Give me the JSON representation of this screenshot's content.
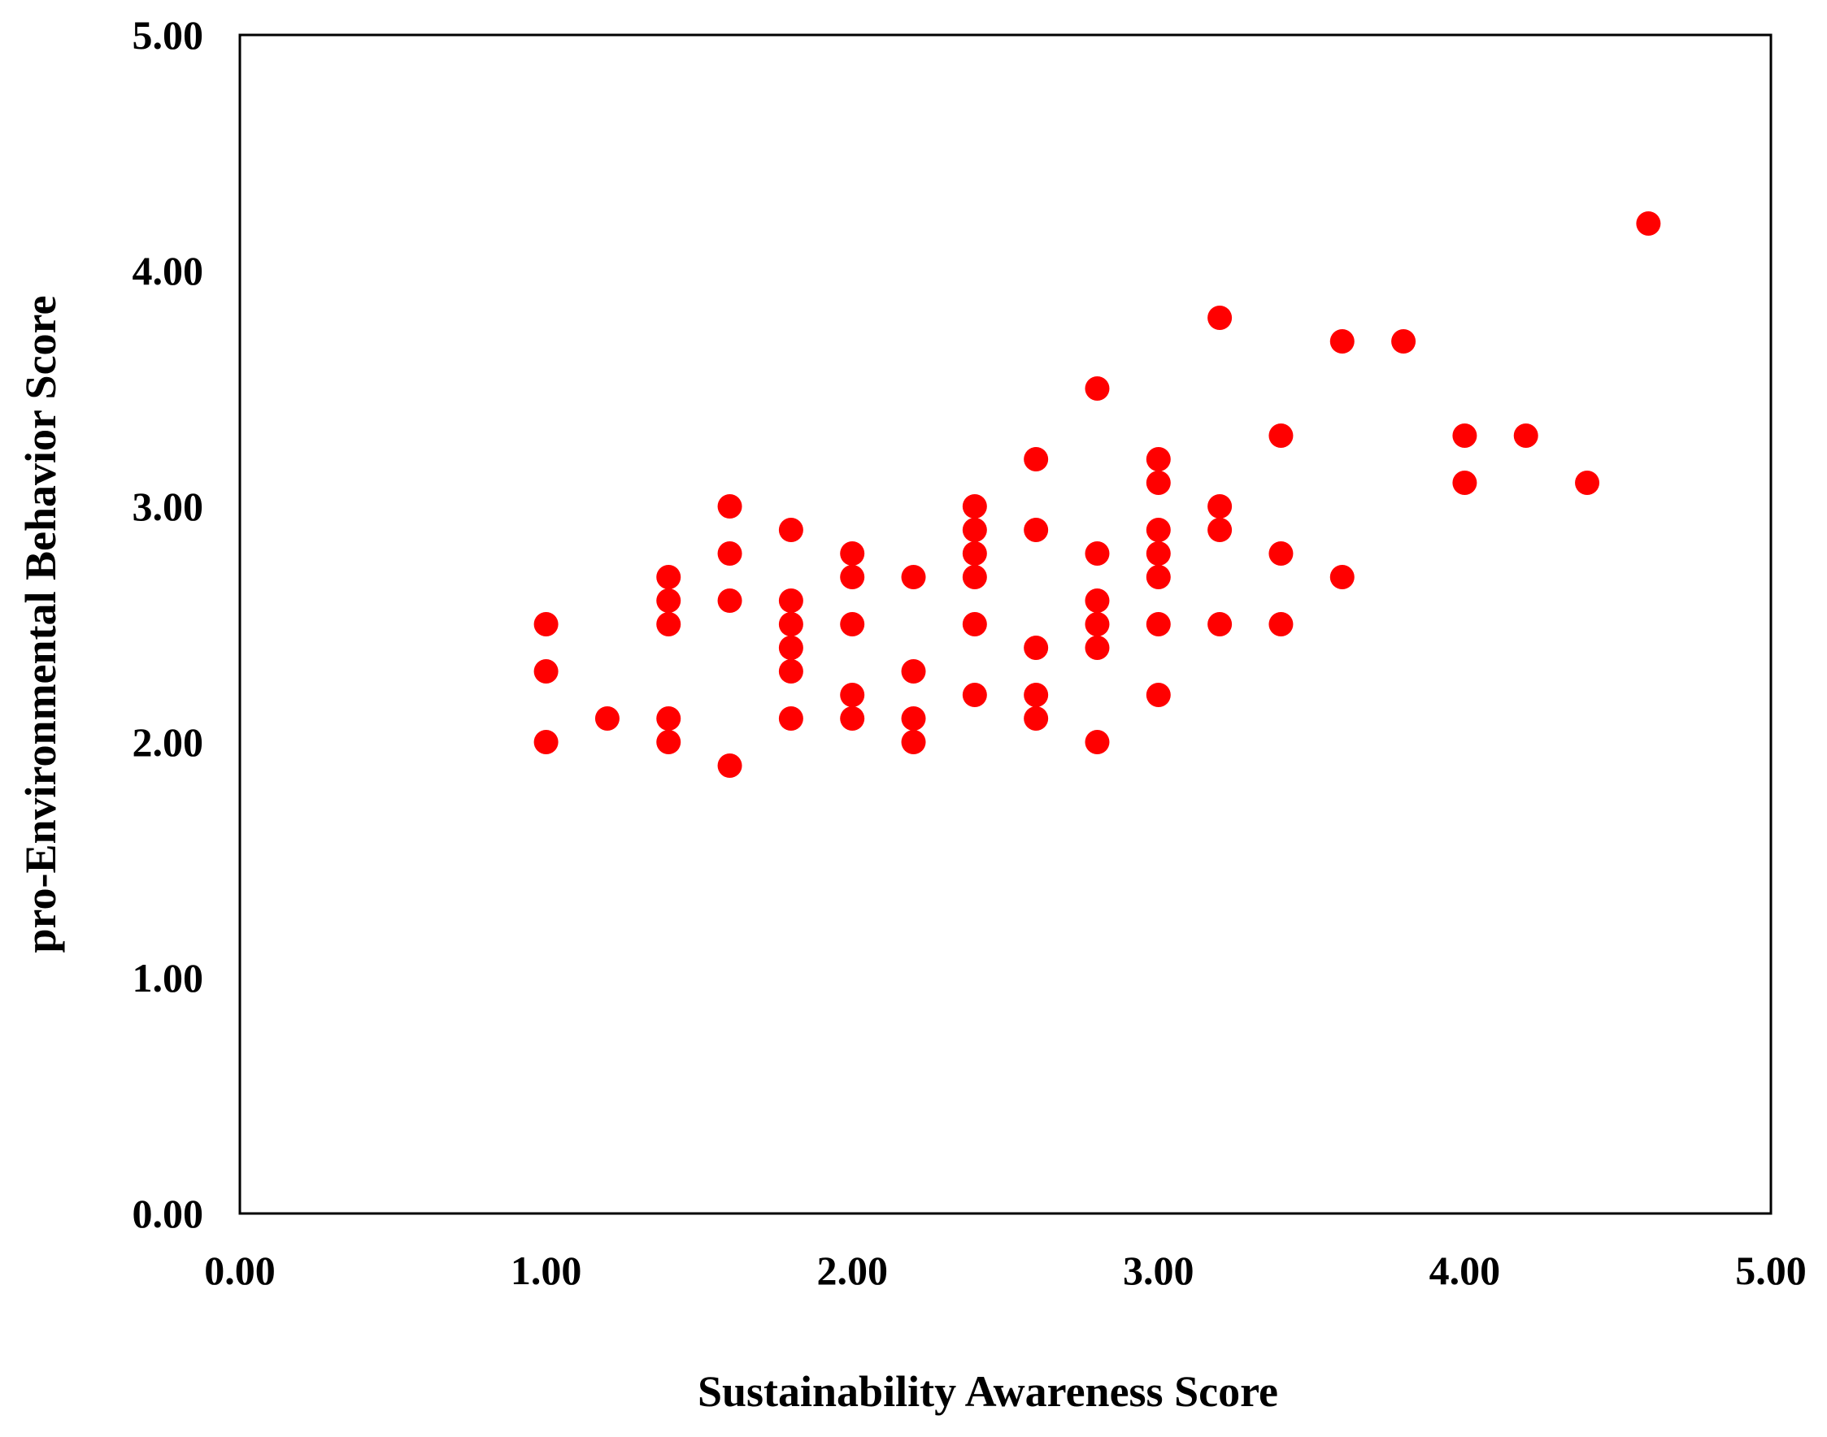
{
  "chart_data": {
    "type": "scatter",
    "title": "",
    "xlabel": "Sustainability Awareness Score",
    "ylabel": "pro-Environmental Behavior Score",
    "xlim": [
      0,
      5
    ],
    "ylim": [
      0,
      5
    ],
    "x_ticks": [
      "0.00",
      "1.00",
      "2.00",
      "3.00",
      "4.00",
      "5.00"
    ],
    "y_ticks": [
      "0.00",
      "1.00",
      "2.00",
      "3.00",
      "4.00",
      "5.00"
    ],
    "grid": false,
    "legend": "none",
    "marker_color": "#ff0000",
    "points": [
      {
        "x": 1.0,
        "y": 2.5
      },
      {
        "x": 1.0,
        "y": 2.3
      },
      {
        "x": 1.0,
        "y": 2.0
      },
      {
        "x": 1.2,
        "y": 2.1
      },
      {
        "x": 1.4,
        "y": 2.7
      },
      {
        "x": 1.4,
        "y": 2.6
      },
      {
        "x": 1.4,
        "y": 2.5
      },
      {
        "x": 1.4,
        "y": 2.1
      },
      {
        "x": 1.4,
        "y": 2.0
      },
      {
        "x": 1.6,
        "y": 3.0
      },
      {
        "x": 1.6,
        "y": 2.8
      },
      {
        "x": 1.6,
        "y": 2.6
      },
      {
        "x": 1.6,
        "y": 1.9
      },
      {
        "x": 1.8,
        "y": 2.9
      },
      {
        "x": 1.8,
        "y": 2.6
      },
      {
        "x": 1.8,
        "y": 2.5
      },
      {
        "x": 1.8,
        "y": 2.4
      },
      {
        "x": 1.8,
        "y": 2.3
      },
      {
        "x": 1.8,
        "y": 2.1
      },
      {
        "x": 2.0,
        "y": 2.8
      },
      {
        "x": 2.0,
        "y": 2.7
      },
      {
        "x": 2.0,
        "y": 2.5
      },
      {
        "x": 2.0,
        "y": 2.2
      },
      {
        "x": 2.0,
        "y": 2.1
      },
      {
        "x": 2.2,
        "y": 2.7
      },
      {
        "x": 2.2,
        "y": 2.3
      },
      {
        "x": 2.2,
        "y": 2.1
      },
      {
        "x": 2.2,
        "y": 2.0
      },
      {
        "x": 2.4,
        "y": 3.0
      },
      {
        "x": 2.4,
        "y": 2.9
      },
      {
        "x": 2.4,
        "y": 2.8
      },
      {
        "x": 2.4,
        "y": 2.7
      },
      {
        "x": 2.4,
        "y": 2.5
      },
      {
        "x": 2.4,
        "y": 2.2
      },
      {
        "x": 2.6,
        "y": 3.2
      },
      {
        "x": 2.6,
        "y": 2.9
      },
      {
        "x": 2.6,
        "y": 2.4
      },
      {
        "x": 2.6,
        "y": 2.2
      },
      {
        "x": 2.6,
        "y": 2.1
      },
      {
        "x": 2.8,
        "y": 3.5
      },
      {
        "x": 2.8,
        "y": 2.8
      },
      {
        "x": 2.8,
        "y": 2.6
      },
      {
        "x": 2.8,
        "y": 2.5
      },
      {
        "x": 2.8,
        "y": 2.4
      },
      {
        "x": 2.8,
        "y": 2.0
      },
      {
        "x": 3.0,
        "y": 3.2
      },
      {
        "x": 3.0,
        "y": 3.1
      },
      {
        "x": 3.0,
        "y": 2.9
      },
      {
        "x": 3.0,
        "y": 2.8
      },
      {
        "x": 3.0,
        "y": 2.7
      },
      {
        "x": 3.0,
        "y": 2.5
      },
      {
        "x": 3.0,
        "y": 2.2
      },
      {
        "x": 3.2,
        "y": 3.8
      },
      {
        "x": 3.2,
        "y": 3.0
      },
      {
        "x": 3.2,
        "y": 2.9
      },
      {
        "x": 3.2,
        "y": 2.5
      },
      {
        "x": 3.4,
        "y": 3.3
      },
      {
        "x": 3.4,
        "y": 2.8
      },
      {
        "x": 3.4,
        "y": 2.5
      },
      {
        "x": 3.6,
        "y": 3.7
      },
      {
        "x": 3.6,
        "y": 2.7
      },
      {
        "x": 3.8,
        "y": 3.7
      },
      {
        "x": 4.0,
        "y": 3.3
      },
      {
        "x": 4.0,
        "y": 3.1
      },
      {
        "x": 4.2,
        "y": 3.3
      },
      {
        "x": 4.4,
        "y": 3.1
      },
      {
        "x": 4.6,
        "y": 4.2
      }
    ]
  }
}
